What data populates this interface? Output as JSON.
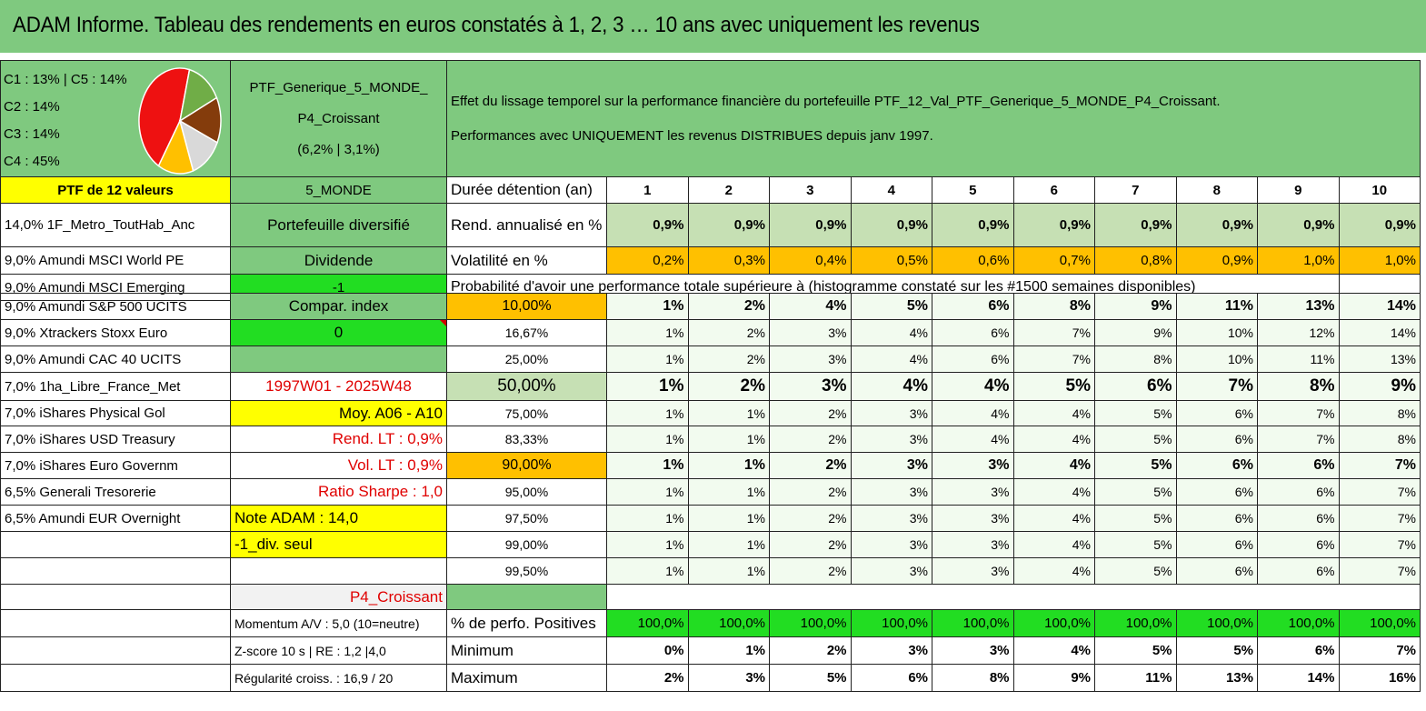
{
  "title": "ADAM Informe. Tableau des rendements en euros constatés à 1, 2, 3 … 10 ans avec uniquement les revenus",
  "legend": [
    "C1 : 13% | C5 : 14%",
    "C2 : 14%",
    "C3 : 14%",
    "C4 : 45%"
  ],
  "pie_slices": [
    {
      "name": "C4",
      "value": 45,
      "color": "#ee1111"
    },
    {
      "name": "C3",
      "value": 14,
      "color": "#70ad47"
    },
    {
      "name": "C2",
      "value": 14,
      "color": "#843c0c"
    },
    {
      "name": "C1",
      "value": 13,
      "color": "#d9d9d9"
    },
    {
      "name": "C5",
      "value": 14,
      "color": "#ffc000"
    }
  ],
  "ptf": {
    "line1": "PTF_Generique_5_MONDE_",
    "line2": "P4_Croissant",
    "line3": "(6,2% | 3,1%)"
  },
  "effect": {
    "line1": "Effet du lissage temporel sur la performance financière du portefeuille PTF_12_Val_PTF_Generique_5_MONDE_P4_Croissant.",
    "line2": "Performances avec UNIQUEMENT les revenus DISTRIBUES depuis janv 1997."
  },
  "header_row": {
    "ptf_label": "PTF de 12 valeurs",
    "zone": "5_MONDE",
    "duration_label": "Durée détention (an)",
    "years": [
      "1",
      "2",
      "3",
      "4",
      "5",
      "6",
      "7",
      "8",
      "9",
      "10"
    ]
  },
  "holdings": [
    "14,0% 1F_Metro_ToutHab_Anc",
    "9,0% Amundi MSCI World PE",
    "9,0% Amundi MSCI Emerging",
    "9,0% Amundi S&P 500 UCITS",
    "9,0% Xtrackers Stoxx Euro",
    "9,0% Amundi CAC 40 UCITS",
    "7,0% 1ha_Libre_France_Met",
    "7,0% iShares Physical Gol",
    "7,0% iShares USD Treasury",
    "7,0% iShares Euro Governm",
    "6,5% Generali Tresorerie",
    "6,5% Amundi EUR Overnight"
  ],
  "side": {
    "diversified": "Portefeuille diversifié",
    "dividend": "Dividende",
    "minus_one": "-1",
    "compar": "Compar. index",
    "zero": "0",
    "period": "1997W01 - 2025W48",
    "moy": "Moy. A06 - A10",
    "rend_lt": "Rend. LT : 0,9%",
    "vol_lt": "Vol. LT : 0,9%",
    "sharpe": "Ratio Sharpe : 1,0",
    "note": "Note ADAM : 14,0",
    "div_seul": "-1_div. seul",
    "profile": "P4_Croissant",
    "momentum": "Momentum A/V : 5,0 (10=neutre)",
    "zscore": "Z-score 10 s | RE : 1,2 |4,0",
    "regularite": "Régularité croiss. : 16,9 / 20"
  },
  "rend": {
    "label": "Rend. annualisé en %",
    "values": [
      "0,9%",
      "0,9%",
      "0,9%",
      "0,9%",
      "0,9%",
      "0,9%",
      "0,9%",
      "0,9%",
      "0,9%",
      "0,9%"
    ]
  },
  "vol": {
    "label": "Volatilité en %",
    "values": [
      "0,2%",
      "0,3%",
      "0,4%",
      "0,5%",
      "0,6%",
      "0,7%",
      "0,8%",
      "0,9%",
      "1,0%",
      "1,0%"
    ]
  },
  "prob_title": "Probabilité d'avoir une performance totale supérieure à (histogramme constaté sur les #1500 semaines disponibles)",
  "prob_rows": [
    {
      "threshold": "10,00%",
      "values": [
        "1%",
        "2%",
        "4%",
        "5%",
        "6%",
        "8%",
        "9%",
        "11%",
        "13%",
        "14%"
      ]
    },
    {
      "threshold": "16,67%",
      "values": [
        "1%",
        "2%",
        "3%",
        "4%",
        "6%",
        "7%",
        "9%",
        "10%",
        "12%",
        "14%"
      ]
    },
    {
      "threshold": "25,00%",
      "values": [
        "1%",
        "2%",
        "3%",
        "4%",
        "6%",
        "7%",
        "8%",
        "10%",
        "11%",
        "13%"
      ]
    },
    {
      "threshold": "50,00%",
      "values": [
        "1%",
        "2%",
        "3%",
        "4%",
        "4%",
        "5%",
        "6%",
        "7%",
        "8%",
        "9%"
      ]
    },
    {
      "threshold": "75,00%",
      "values": [
        "1%",
        "1%",
        "2%",
        "3%",
        "4%",
        "4%",
        "5%",
        "6%",
        "7%",
        "8%"
      ]
    },
    {
      "threshold": "83,33%",
      "values": [
        "1%",
        "1%",
        "2%",
        "3%",
        "4%",
        "4%",
        "5%",
        "6%",
        "7%",
        "8%"
      ]
    },
    {
      "threshold": "90,00%",
      "values": [
        "1%",
        "1%",
        "2%",
        "3%",
        "3%",
        "4%",
        "5%",
        "6%",
        "6%",
        "7%"
      ]
    },
    {
      "threshold": "95,00%",
      "values": [
        "1%",
        "1%",
        "2%",
        "3%",
        "3%",
        "4%",
        "5%",
        "6%",
        "6%",
        "7%"
      ]
    },
    {
      "threshold": "97,50%",
      "values": [
        "1%",
        "1%",
        "2%",
        "3%",
        "3%",
        "4%",
        "5%",
        "6%",
        "6%",
        "7%"
      ]
    },
    {
      "threshold": "99,00%",
      "values": [
        "1%",
        "1%",
        "2%",
        "3%",
        "3%",
        "4%",
        "5%",
        "6%",
        "6%",
        "7%"
      ]
    },
    {
      "threshold": "99,50%",
      "values": [
        "1%",
        "1%",
        "2%",
        "3%",
        "3%",
        "4%",
        "5%",
        "6%",
        "6%",
        "7%"
      ]
    }
  ],
  "pos": {
    "label": "% de perfo. Positives",
    "values": [
      "100,0%",
      "100,0%",
      "100,0%",
      "100,0%",
      "100,0%",
      "100,0%",
      "100,0%",
      "100,0%",
      "100,0%",
      "100,0%"
    ]
  },
  "min": {
    "label": "Minimum",
    "values": [
      "0%",
      "1%",
      "2%",
      "3%",
      "3%",
      "4%",
      "5%",
      "5%",
      "6%",
      "7%"
    ]
  },
  "max": {
    "label": "Maximum",
    "values": [
      "2%",
      "3%",
      "5%",
      "6%",
      "8%",
      "9%",
      "11%",
      "13%",
      "14%",
      "16%"
    ]
  }
}
